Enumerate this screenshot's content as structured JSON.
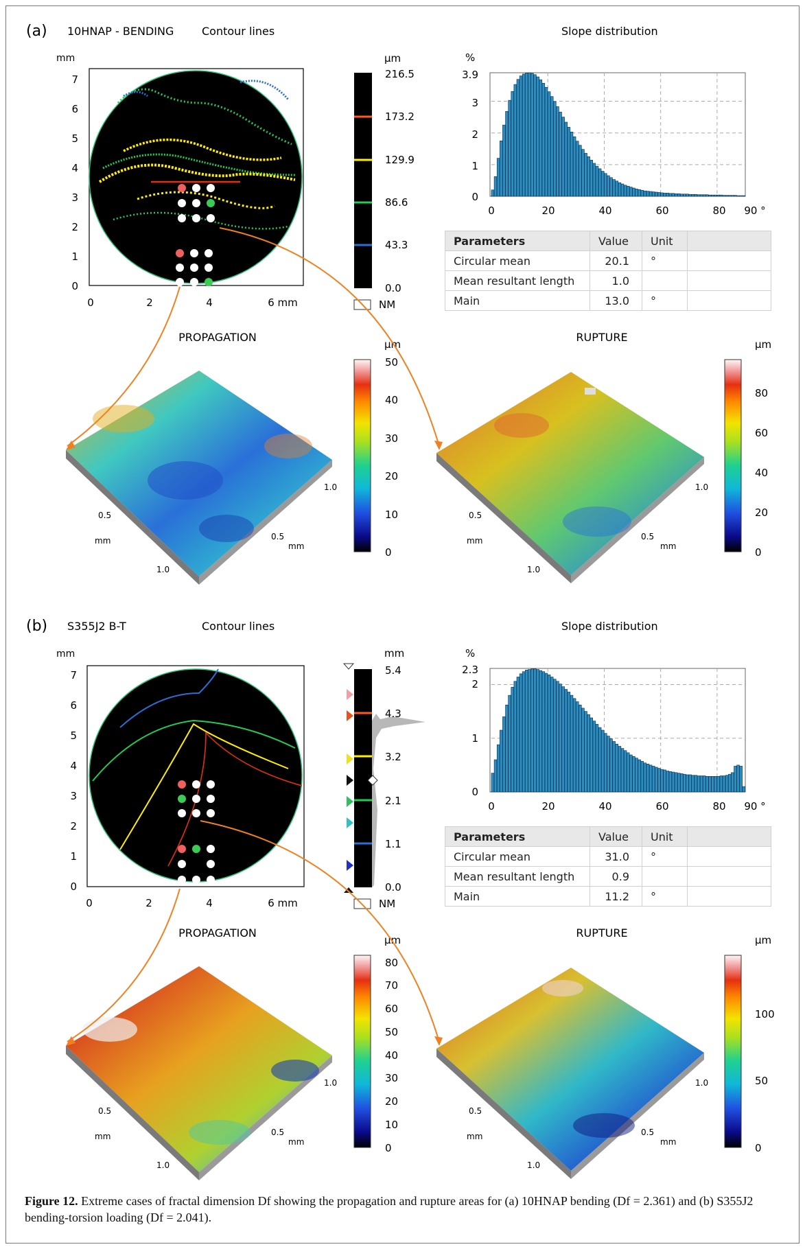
{
  "panels": [
    {
      "letter": "(a)",
      "specimen": "10HNAP - BENDING",
      "contour_title": "Contour lines",
      "slope_title": "Slope distribution",
      "map_unit": "mm",
      "map_x_ticks": [
        "0",
        "2",
        "4",
        "6 mm"
      ],
      "map_y_ticks": [
        "0",
        "1",
        "2",
        "3",
        "4",
        "5",
        "6",
        "7"
      ],
      "colorbar_unit": "µm",
      "colorbar_ticks": [
        "216.5",
        "173.2",
        "129.9",
        "86.6",
        "43.3",
        "0.0"
      ],
      "colorbar_colors": [
        "#ff5a1f",
        "#ffee00",
        "#22cc55",
        "#2a6fd6"
      ],
      "nm_label": "NM",
      "hist_unit": "%",
      "hist_y_ticks": [
        "3.9",
        "3",
        "2",
        "1",
        "0"
      ],
      "hist_x_ticks": [
        "0",
        "20",
        "40",
        "60",
        "80",
        "90 °"
      ],
      "table": {
        "headers": [
          "Parameters",
          "Value",
          "Unit"
        ],
        "rows": [
          {
            "param": "Circular mean",
            "value": "20.1",
            "unit": "°"
          },
          {
            "param": "Mean resultant length",
            "value": "1.0",
            "unit": ""
          },
          {
            "param": "Main",
            "value": "13.0",
            "unit": "°"
          }
        ]
      },
      "prop_title": "PROPAGATION",
      "rupt_title": "RUPTURE",
      "prop_unit": "µm",
      "prop_scale_ticks": [
        "50",
        "40",
        "30",
        "20",
        "10",
        "0"
      ],
      "rupt_unit": "µm",
      "rupt_scale_ticks": [
        "80",
        "60",
        "40",
        "20",
        "0"
      ],
      "axis3d": {
        "a": "1.0",
        "b": "0.5",
        "c": "mm",
        "d": "0.5",
        "e": "mm",
        "f": "1.0"
      }
    },
    {
      "letter": "(b)",
      "specimen": "S355J2 B-T",
      "contour_title": "Contour lines",
      "slope_title": "Slope distribution",
      "map_unit": "mm",
      "map_x_ticks": [
        "0",
        "2",
        "4",
        "6 mm"
      ],
      "map_y_ticks": [
        "0",
        "1",
        "2",
        "3",
        "4",
        "5",
        "6",
        "7"
      ],
      "colorbar_unit": "mm",
      "colorbar_ticks": [
        "5.4",
        "4.3",
        "3.2",
        "2.1",
        "1.1",
        "0.0"
      ],
      "colorbar_colors": [
        "#ff5a1f",
        "#ffee00",
        "#22cc55",
        "#2a6fd6"
      ],
      "nm_label": "NM",
      "hist_unit": "%",
      "hist_y_ticks": [
        "2.3",
        "2",
        "1",
        "0"
      ],
      "hist_x_ticks": [
        "0",
        "20",
        "40",
        "60",
        "80",
        "90 °"
      ],
      "table": {
        "headers": [
          "Parameters",
          "Value",
          "Unit"
        ],
        "rows": [
          {
            "param": "Circular mean",
            "value": "31.0",
            "unit": "°"
          },
          {
            "param": "Mean resultant length",
            "value": "0.9",
            "unit": ""
          },
          {
            "param": "Main",
            "value": "11.2",
            "unit": "°"
          }
        ]
      },
      "prop_title": "PROPAGATION",
      "rupt_title": "RUPTURE",
      "prop_unit": "µm",
      "prop_scale_ticks": [
        "80",
        "70",
        "60",
        "50",
        "40",
        "30",
        "20",
        "10",
        "0"
      ],
      "rupt_unit": "µm",
      "rupt_scale_ticks": [
        "100",
        "50",
        "0"
      ],
      "axis3d": {
        "a": "1.0",
        "b": "0.5",
        "c": "mm",
        "d": "0.5",
        "e": "mm",
        "f": "1.0"
      }
    }
  ],
  "caption": {
    "label": "Figure 12.",
    "text": "Extreme cases of fractal dimension Df showing the propagation and rupture areas for (a) 10HNAP bending (Df = 2.361) and (b) S355J2 bending-torsion loading (Df = 2.041)."
  },
  "chart_data": [
    {
      "type": "bar",
      "title": "Slope distribution",
      "panel": "(a)",
      "xlabel": "°",
      "ylabel": "%",
      "xlim": [
        0,
        90
      ],
      "ylim": [
        0,
        3.9
      ],
      "bin_width": 1,
      "x": [
        0,
        1,
        2,
        3,
        4,
        5,
        6,
        7,
        8,
        9,
        10,
        11,
        12,
        13,
        14,
        15,
        16,
        17,
        18,
        19,
        20,
        21,
        22,
        23,
        24,
        25,
        26,
        27,
        28,
        29,
        30,
        31,
        32,
        33,
        34,
        35,
        36,
        37,
        38,
        39,
        40,
        41,
        42,
        43,
        44,
        45,
        46,
        47,
        48,
        49,
        50,
        51,
        52,
        53,
        54,
        55,
        56,
        57,
        58,
        59,
        60,
        61,
        62,
        63,
        64,
        65,
        66,
        67,
        68,
        69,
        70,
        71,
        72,
        73,
        74,
        75,
        76,
        77,
        78,
        79,
        80,
        81,
        82,
        83,
        84,
        85,
        86,
        87,
        88,
        89
      ],
      "values": [
        0.2,
        0.62,
        1.2,
        1.75,
        2.25,
        2.68,
        3.03,
        3.31,
        3.53,
        3.69,
        3.8,
        3.86,
        3.89,
        3.9,
        3.88,
        3.84,
        3.77,
        3.68,
        3.57,
        3.44,
        3.3,
        3.15,
        2.99,
        2.83,
        2.66,
        2.5,
        2.34,
        2.18,
        2.03,
        1.88,
        1.74,
        1.61,
        1.48,
        1.36,
        1.25,
        1.14,
        1.04,
        0.95,
        0.87,
        0.79,
        0.72,
        0.65,
        0.59,
        0.53,
        0.48,
        0.43,
        0.39,
        0.35,
        0.32,
        0.29,
        0.26,
        0.23,
        0.21,
        0.19,
        0.17,
        0.16,
        0.15,
        0.14,
        0.13,
        0.12,
        0.11,
        0.1,
        0.1,
        0.09,
        0.09,
        0.08,
        0.08,
        0.07,
        0.07,
        0.07,
        0.06,
        0.06,
        0.06,
        0.05,
        0.05,
        0.05,
        0.05,
        0.04,
        0.04,
        0.04,
        0.04,
        0.04,
        0.03,
        0.03,
        0.03,
        0.03,
        0.03,
        0.02,
        0.02,
        0.02
      ]
    },
    {
      "type": "bar",
      "title": "Slope distribution",
      "panel": "(b)",
      "xlabel": "°",
      "ylabel": "%",
      "xlim": [
        0,
        90
      ],
      "ylim": [
        0,
        2.3
      ],
      "bin_width": 1,
      "x": [
        0,
        1,
        2,
        3,
        4,
        5,
        6,
        7,
        8,
        9,
        10,
        11,
        12,
        13,
        14,
        15,
        16,
        17,
        18,
        19,
        20,
        21,
        22,
        23,
        24,
        25,
        26,
        27,
        28,
        29,
        30,
        31,
        32,
        33,
        34,
        35,
        36,
        37,
        38,
        39,
        40,
        41,
        42,
        43,
        44,
        45,
        46,
        47,
        48,
        49,
        50,
        51,
        52,
        53,
        54,
        55,
        56,
        57,
        58,
        59,
        60,
        61,
        62,
        63,
        64,
        65,
        66,
        67,
        68,
        69,
        70,
        71,
        72,
        73,
        74,
        75,
        76,
        77,
        78,
        79,
        80,
        81,
        82,
        83,
        84,
        85,
        86,
        87,
        88,
        89
      ],
      "values": [
        0.35,
        0.6,
        0.88,
        1.15,
        1.4,
        1.62,
        1.8,
        1.95,
        2.06,
        2.14,
        2.2,
        2.24,
        2.27,
        2.28,
        2.29,
        2.29,
        2.28,
        2.26,
        2.24,
        2.21,
        2.18,
        2.14,
        2.1,
        2.06,
        2.01,
        1.96,
        1.91,
        1.86,
        1.8,
        1.74,
        1.68,
        1.62,
        1.56,
        1.5,
        1.44,
        1.38,
        1.32,
        1.26,
        1.2,
        1.15,
        1.09,
        1.04,
        0.99,
        0.94,
        0.89,
        0.85,
        0.81,
        0.77,
        0.73,
        0.69,
        0.66,
        0.63,
        0.6,
        0.57,
        0.54,
        0.52,
        0.5,
        0.48,
        0.46,
        0.44,
        0.42,
        0.41,
        0.39,
        0.38,
        0.37,
        0.36,
        0.35,
        0.34,
        0.33,
        0.32,
        0.32,
        0.31,
        0.31,
        0.3,
        0.3,
        0.3,
        0.29,
        0.29,
        0.29,
        0.29,
        0.29,
        0.3,
        0.3,
        0.31,
        0.33,
        0.36,
        0.48,
        0.5,
        0.48,
        0.1
      ]
    }
  ]
}
